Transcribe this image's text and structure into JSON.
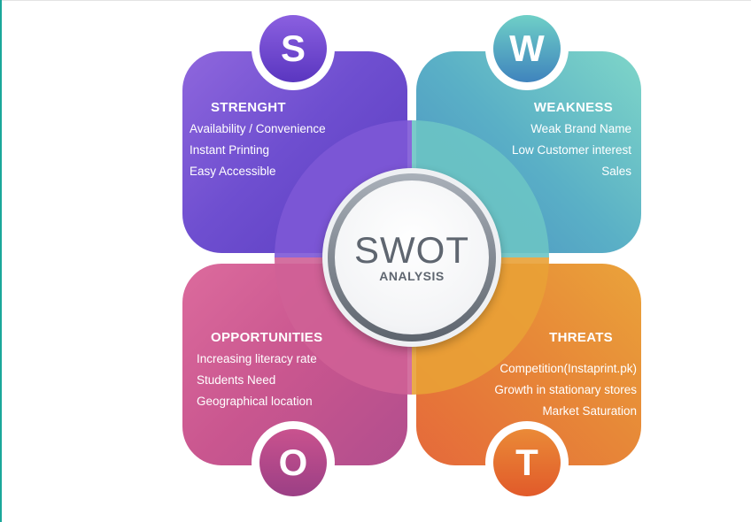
{
  "center": {
    "title": "SWOT",
    "subtitle": "ANALYSIS"
  },
  "strength": {
    "letter": "S",
    "heading": "STRENGHT",
    "items": [
      "Availability / Convenience",
      "Instant Printing",
      "Easy Accessible"
    ],
    "color": "#6f4fd0"
  },
  "weakness": {
    "letter": "W",
    "heading": "WEAKNESS",
    "items": [
      "Weak Brand Name",
      "Low Customer interest",
      "Sales"
    ],
    "color": "#5ab0c6"
  },
  "opportunities": {
    "letter": "O",
    "heading": "OPPORTUNITIES",
    "items": [
      "Increasing literacy rate",
      "Students Need",
      "Geographical location"
    ],
    "color": "#c9568f"
  },
  "threats": {
    "letter": "T",
    "heading": "THREATS",
    "items": [
      "Competition(Instaprint.pk)",
      "Growth in stationary stores",
      "Market Saturation"
    ],
    "color": "#e78838"
  }
}
